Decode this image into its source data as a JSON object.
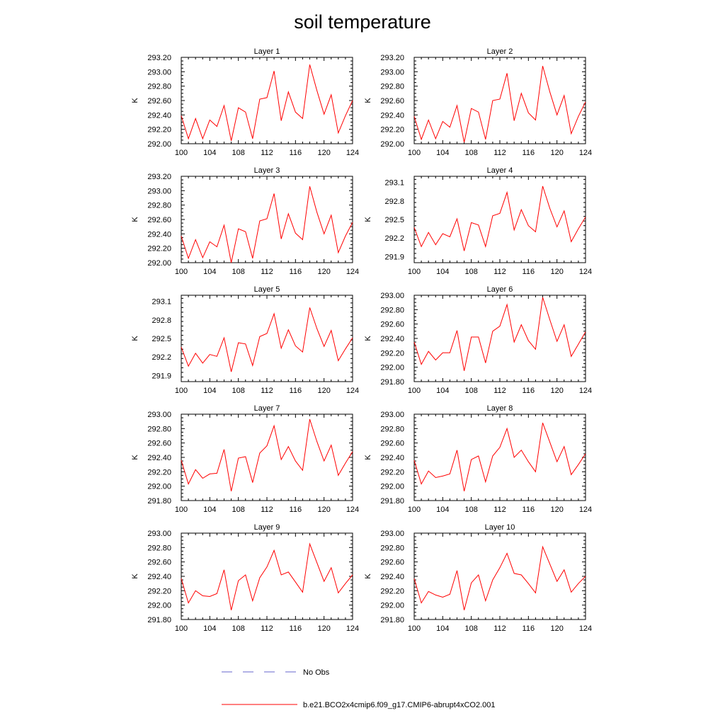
{
  "title": "soil temperature",
  "legend": {
    "items": [
      {
        "label": "No Obs",
        "color": "#6666cc",
        "dash": true
      },
      {
        "label": "b.e21.BCO2x4cmip6.f09_g17.CMIP6-abrupt4xCO2.001",
        "color": "#ff0000",
        "dash": false
      }
    ]
  },
  "chart_data": [
    {
      "type": "line",
      "title": "Layer 1",
      "ylabel": "K",
      "xlim": [
        100,
        124
      ],
      "ylim": [
        292.0,
        293.2
      ],
      "xticks": [
        100,
        104,
        108,
        112,
        116,
        120,
        124
      ],
      "yticks": [
        "292.00",
        "292.20",
        "292.40",
        "292.60",
        "292.80",
        "293.00",
        "293.20"
      ],
      "series": [
        {
          "name": "b.e21.BCO2x4cmip6.f09_g17.CMIP6-abrupt4xCO2.001",
          "color": "#ff0000",
          "x": [
            100,
            101,
            102,
            103,
            104,
            105,
            106,
            107,
            108,
            109,
            110,
            111,
            112,
            113,
            114,
            115,
            116,
            117,
            118,
            119,
            120,
            121,
            122,
            123,
            124
          ],
          "values": [
            292.39,
            292.07,
            292.35,
            292.07,
            292.33,
            292.24,
            292.53,
            292.04,
            292.5,
            292.44,
            292.07,
            292.62,
            292.64,
            293.01,
            292.32,
            292.72,
            292.44,
            292.35,
            293.1,
            292.74,
            292.41,
            292.68,
            292.15,
            292.39,
            292.6
          ]
        }
      ]
    },
    {
      "type": "line",
      "title": "Layer 2",
      "ylabel": "K",
      "xlim": [
        100,
        124
      ],
      "ylim": [
        292.0,
        293.2
      ],
      "xticks": [
        100,
        104,
        108,
        112,
        116,
        120,
        124
      ],
      "yticks": [
        "292.00",
        "292.20",
        "292.40",
        "292.60",
        "292.80",
        "293.00",
        "293.20"
      ],
      "series": [
        {
          "name": "b.e21.BCO2x4cmip6.f09_g17.CMIP6-abrupt4xCO2.001",
          "color": "#ff0000",
          "x": [
            100,
            101,
            102,
            103,
            104,
            105,
            106,
            107,
            108,
            109,
            110,
            111,
            112,
            113,
            114,
            115,
            116,
            117,
            118,
            119,
            120,
            121,
            122,
            123,
            124
          ],
          "values": [
            292.38,
            292.06,
            292.33,
            292.07,
            292.31,
            292.23,
            292.53,
            292.02,
            292.49,
            292.44,
            292.06,
            292.6,
            292.62,
            292.98,
            292.32,
            292.7,
            292.43,
            292.33,
            293.08,
            292.72,
            292.4,
            292.67,
            292.14,
            292.38,
            292.58
          ]
        }
      ]
    },
    {
      "type": "line",
      "title": "Layer 3",
      "ylabel": "K",
      "xlim": [
        100,
        124
      ],
      "ylim": [
        292.0,
        293.2
      ],
      "xticks": [
        100,
        104,
        108,
        112,
        116,
        120,
        124
      ],
      "yticks": [
        "292.00",
        "292.20",
        "292.40",
        "292.60",
        "292.80",
        "293.00",
        "293.20"
      ],
      "series": [
        {
          "name": "b.e21.BCO2x4cmip6.f09_g17.CMIP6-abrupt4xCO2.001",
          "color": "#ff0000",
          "x": [
            100,
            101,
            102,
            103,
            104,
            105,
            106,
            107,
            108,
            109,
            110,
            111,
            112,
            113,
            114,
            115,
            116,
            117,
            118,
            119,
            120,
            121,
            122,
            123,
            124
          ],
          "values": [
            292.37,
            292.06,
            292.32,
            292.07,
            292.29,
            292.22,
            292.52,
            292.0,
            292.47,
            292.43,
            292.06,
            292.58,
            292.61,
            292.96,
            292.33,
            292.68,
            292.41,
            292.32,
            293.06,
            292.7,
            292.4,
            292.66,
            292.14,
            292.37,
            292.56
          ]
        }
      ]
    },
    {
      "type": "line",
      "title": "Layer 4",
      "ylabel": "K",
      "xlim": [
        100,
        124
      ],
      "ylim": [
        291.8,
        293.2
      ],
      "xticks": [
        100,
        104,
        108,
        112,
        116,
        120,
        124
      ],
      "yticks": [
        "291.9",
        "292.2",
        "292.5",
        "292.8",
        "293.1"
      ],
      "series": [
        {
          "name": "b.e21.BCO2x4cmip6.f09_g17.CMIP6-abrupt4xCO2.001",
          "color": "#ff0000",
          "x": [
            100,
            101,
            102,
            103,
            104,
            105,
            106,
            107,
            108,
            109,
            110,
            111,
            112,
            113,
            114,
            115,
            116,
            117,
            118,
            119,
            120,
            121,
            122,
            123,
            124
          ],
          "values": [
            292.37,
            292.06,
            292.29,
            292.09,
            292.27,
            292.22,
            292.51,
            291.99,
            292.45,
            292.41,
            292.06,
            292.56,
            292.6,
            292.94,
            292.33,
            292.66,
            292.4,
            292.3,
            293.04,
            292.68,
            292.38,
            292.64,
            292.14,
            292.35,
            292.54
          ]
        }
      ]
    },
    {
      "type": "line",
      "title": "Layer 5",
      "ylabel": "K",
      "xlim": [
        100,
        124
      ],
      "ylim": [
        291.8,
        293.2
      ],
      "xticks": [
        100,
        104,
        108,
        112,
        116,
        120,
        124
      ],
      "yticks": [
        "291.9",
        "292.2",
        "292.5",
        "292.8",
        "293.1"
      ],
      "series": [
        {
          "name": "b.e21.BCO2x4cmip6.f09_g17.CMIP6-abrupt4xCO2.001",
          "color": "#ff0000",
          "x": [
            100,
            101,
            102,
            103,
            104,
            105,
            106,
            107,
            108,
            109,
            110,
            111,
            112,
            113,
            114,
            115,
            116,
            117,
            118,
            119,
            120,
            121,
            122,
            123,
            124
          ],
          "values": [
            292.36,
            292.05,
            292.26,
            292.1,
            292.24,
            292.21,
            292.51,
            291.96,
            292.43,
            292.41,
            292.06,
            292.53,
            292.58,
            292.9,
            292.34,
            292.64,
            292.38,
            292.28,
            293.0,
            292.66,
            292.37,
            292.63,
            292.14,
            292.33,
            292.51
          ]
        }
      ]
    },
    {
      "type": "line",
      "title": "Layer 6",
      "ylabel": "K",
      "xlim": [
        100,
        124
      ],
      "ylim": [
        291.8,
        293.0
      ],
      "xticks": [
        100,
        104,
        108,
        112,
        116,
        120,
        124
      ],
      "yticks": [
        "291.80",
        "292.00",
        "292.20",
        "292.40",
        "292.60",
        "292.80",
        "293.00"
      ],
      "series": [
        {
          "name": "b.e21.BCO2x4cmip6.f09_g17.CMIP6-abrupt4xCO2.001",
          "color": "#ff0000",
          "x": [
            100,
            101,
            102,
            103,
            104,
            105,
            106,
            107,
            108,
            109,
            110,
            111,
            112,
            113,
            114,
            115,
            116,
            117,
            118,
            119,
            120,
            121,
            122,
            123,
            124
          ],
          "values": [
            292.35,
            292.04,
            292.22,
            292.1,
            292.2,
            292.2,
            292.51,
            291.95,
            292.42,
            292.42,
            292.06,
            292.5,
            292.57,
            292.87,
            292.35,
            292.59,
            292.37,
            292.25,
            292.97,
            292.66,
            292.36,
            292.59,
            292.15,
            292.32,
            292.49
          ]
        }
      ]
    },
    {
      "type": "line",
      "title": "Layer 7",
      "ylabel": "K",
      "xlim": [
        100,
        124
      ],
      "ylim": [
        291.8,
        293.0
      ],
      "xticks": [
        100,
        104,
        108,
        112,
        116,
        120,
        124
      ],
      "yticks": [
        "291.80",
        "292.00",
        "292.20",
        "292.40",
        "292.60",
        "292.80",
        "293.00"
      ],
      "series": [
        {
          "name": "b.e21.BCO2x4cmip6.f09_g17.CMIP6-abrupt4xCO2.001",
          "color": "#ff0000",
          "x": [
            100,
            101,
            102,
            103,
            104,
            105,
            106,
            107,
            108,
            109,
            110,
            111,
            112,
            113,
            114,
            115,
            116,
            117,
            118,
            119,
            120,
            121,
            122,
            123,
            124
          ],
          "values": [
            292.36,
            292.03,
            292.23,
            292.11,
            292.17,
            292.18,
            292.51,
            291.93,
            292.39,
            292.41,
            292.05,
            292.46,
            292.56,
            292.84,
            292.37,
            292.55,
            292.35,
            292.22,
            292.93,
            292.62,
            292.35,
            292.57,
            292.15,
            292.32,
            292.48
          ]
        }
      ]
    },
    {
      "type": "line",
      "title": "Layer 8",
      "ylabel": "K",
      "xlim": [
        100,
        124
      ],
      "ylim": [
        291.8,
        293.0
      ],
      "xticks": [
        100,
        104,
        108,
        112,
        116,
        120,
        124
      ],
      "yticks": [
        "291.80",
        "292.00",
        "292.20",
        "292.40",
        "292.60",
        "292.80",
        "293.00"
      ],
      "series": [
        {
          "name": "b.e21.BCO2x4cmip6.f09_g17.CMIP6-abrupt4xCO2.001",
          "color": "#ff0000",
          "x": [
            100,
            101,
            102,
            103,
            104,
            105,
            106,
            107,
            108,
            109,
            110,
            111,
            112,
            113,
            114,
            115,
            116,
            117,
            118,
            119,
            120,
            121,
            122,
            123,
            124
          ],
          "values": [
            292.36,
            292.03,
            292.21,
            292.12,
            292.14,
            292.17,
            292.5,
            291.93,
            292.37,
            292.42,
            292.06,
            292.42,
            292.54,
            292.8,
            292.4,
            292.5,
            292.34,
            292.2,
            292.88,
            292.61,
            292.34,
            292.55,
            292.16,
            292.3,
            292.45
          ]
        }
      ]
    },
    {
      "type": "line",
      "title": "Layer 9",
      "ylabel": "K",
      "xlim": [
        100,
        124
      ],
      "ylim": [
        291.8,
        293.0
      ],
      "xticks": [
        100,
        104,
        108,
        112,
        116,
        120,
        124
      ],
      "yticks": [
        "291.80",
        "292.00",
        "292.20",
        "292.40",
        "292.60",
        "292.80",
        "293.00"
      ],
      "series": [
        {
          "name": "b.e21.BCO2x4cmip6.f09_g17.CMIP6-abrupt4xCO2.001",
          "color": "#ff0000",
          "x": [
            100,
            101,
            102,
            103,
            104,
            105,
            106,
            107,
            108,
            109,
            110,
            111,
            112,
            113,
            114,
            115,
            116,
            117,
            118,
            119,
            120,
            121,
            122,
            123,
            124
          ],
          "values": [
            292.37,
            292.03,
            292.2,
            292.13,
            292.12,
            292.16,
            292.49,
            291.93,
            292.34,
            292.42,
            292.06,
            292.38,
            292.53,
            292.76,
            292.42,
            292.46,
            292.32,
            292.18,
            292.85,
            292.59,
            292.33,
            292.52,
            292.17,
            292.3,
            292.42
          ]
        }
      ]
    },
    {
      "type": "line",
      "title": "Layer 10",
      "ylabel": "K",
      "xlim": [
        100,
        124
      ],
      "ylim": [
        291.8,
        293.0
      ],
      "xticks": [
        100,
        104,
        108,
        112,
        116,
        120,
        124
      ],
      "yticks": [
        "291.80",
        "292.00",
        "292.20",
        "292.40",
        "292.60",
        "292.80",
        "293.00"
      ],
      "series": [
        {
          "name": "b.e21.BCO2x4cmip6.f09_g17.CMIP6-abrupt4xCO2.001",
          "color": "#ff0000",
          "x": [
            100,
            101,
            102,
            103,
            104,
            105,
            106,
            107,
            108,
            109,
            110,
            111,
            112,
            113,
            114,
            115,
            116,
            117,
            118,
            119,
            120,
            121,
            122,
            123,
            124
          ],
          "values": [
            292.37,
            292.03,
            292.19,
            292.14,
            292.11,
            292.15,
            292.48,
            291.93,
            292.31,
            292.42,
            292.06,
            292.35,
            292.52,
            292.72,
            292.44,
            292.42,
            292.3,
            292.17,
            292.81,
            292.57,
            292.33,
            292.49,
            292.18,
            292.3,
            292.4
          ]
        }
      ]
    }
  ]
}
